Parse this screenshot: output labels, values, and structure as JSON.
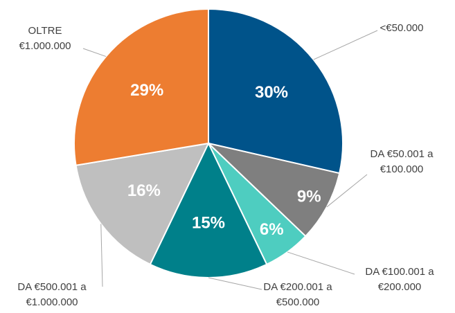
{
  "chart_data": {
    "type": "pie",
    "categories": [
      "<€50.000",
      "DA €50.001 a €100.000",
      "DA €100.001 a €200.000",
      "DA €200.001 a €500.000",
      "DA €500.001 a €1.000.000",
      "OLTRE €1.000.000"
    ],
    "values": [
      30,
      9,
      6,
      15,
      16,
      29
    ],
    "value_labels": [
      "30%",
      "9%",
      "6%",
      "15%",
      "16%",
      "29%"
    ],
    "colors": [
      "#00538a",
      "#7f7f7f",
      "#4ecdc0",
      "#00808a",
      "#bfbfbf",
      "#ed7d31"
    ]
  }
}
